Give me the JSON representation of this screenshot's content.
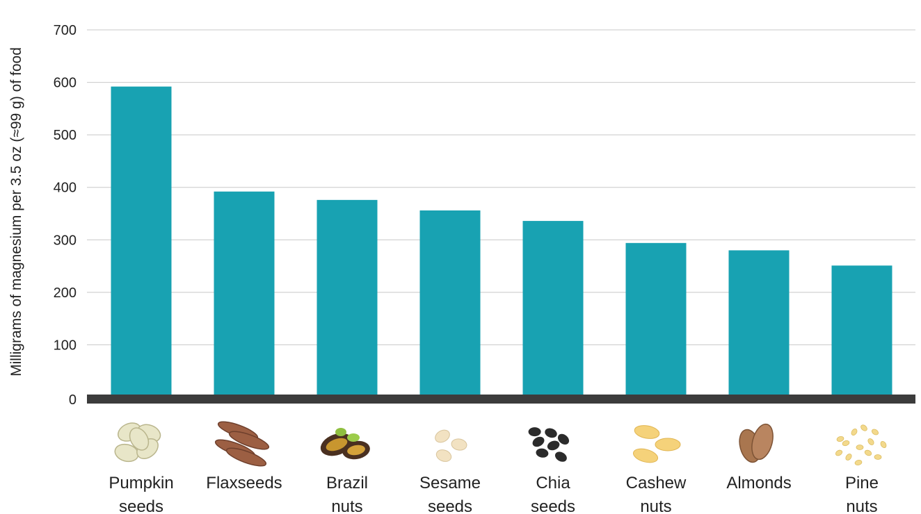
{
  "chart_data": {
    "type": "bar",
    "ylabel": "Milligrams of magnesium per 3.5 oz (≈99 g) of food",
    "xlabel": "",
    "ylim": [
      0,
      700
    ],
    "yticks": [
      0,
      100,
      200,
      300,
      400,
      500,
      600,
      700
    ],
    "grid": true,
    "legend": "none",
    "categories": [
      [
        "Pumpkin",
        "seeds"
      ],
      [
        "Flaxseeds"
      ],
      [
        "Brazil",
        "nuts"
      ],
      [
        "Sesame",
        "seeds"
      ],
      [
        "Chia",
        "seeds"
      ],
      [
        "Cashew",
        "nuts"
      ],
      [
        "Almonds"
      ],
      [
        "Pine",
        "nuts"
      ]
    ],
    "values": [
      592,
      392,
      376,
      356,
      336,
      294,
      280,
      251
    ],
    "icons": [
      "pumpkin-seeds-icon",
      "flaxseeds-icon",
      "brazil-nuts-icon",
      "sesame-seeds-icon",
      "chia-seeds-icon",
      "cashew-nuts-icon",
      "almonds-icon",
      "pine-nuts-icon"
    ],
    "colors": {
      "bar": "#18a2b2",
      "baseline": "#3c3c3c",
      "grid": "#c8c8c8"
    }
  }
}
